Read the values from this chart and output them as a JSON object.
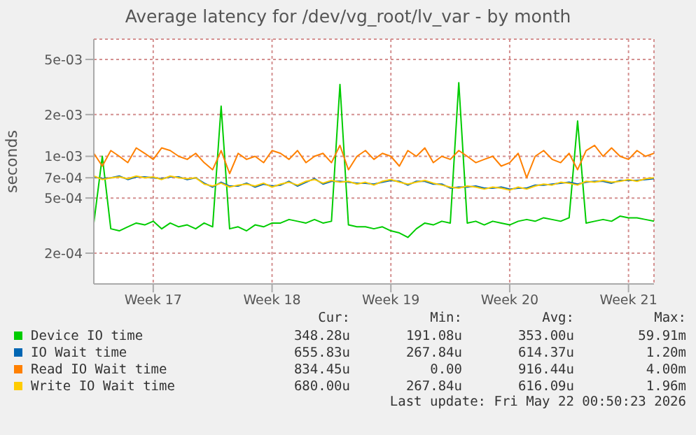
{
  "chart_data": {
    "type": "line",
    "title": "Average latency for /dev/vg_root/lv_var - by month",
    "ylabel": "seconds",
    "log": "y",
    "grid": true,
    "legend": "bottom",
    "categories": [
      null,
      null,
      null,
      null,
      null,
      null,
      null,
      "Week 17",
      null,
      null,
      null,
      null,
      null,
      null,
      null,
      null,
      null,
      null,
      null,
      null,
      null,
      "Week 18",
      null,
      null,
      null,
      null,
      null,
      null,
      null,
      null,
      null,
      null,
      null,
      null,
      null,
      "Week 19",
      null,
      null,
      null,
      null,
      null,
      null,
      null,
      null,
      null,
      null,
      null,
      null,
      null,
      "Week 20",
      null,
      null,
      null,
      null,
      null,
      null,
      null,
      null,
      null,
      null,
      null,
      null,
      null,
      "Week 21",
      null,
      null,
      null
    ],
    "ylim": [
      0.00012,
      0.007
    ],
    "yticks": [
      {
        "value": 0.0002,
        "label": "2e-04"
      },
      {
        "value": 0.0005,
        "label": "5e-04"
      },
      {
        "value": 0.0007,
        "label": "7e-04"
      },
      {
        "value": 0.001,
        "label": "1e-03"
      },
      {
        "value": 0.002,
        "label": "2e-03"
      },
      {
        "value": 0.005,
        "label": "5e-03"
      }
    ],
    "series": [
      {
        "name": "Device IO time",
        "color": "#00cc00",
        "values": [
          0.00033,
          0.001,
          0.0003,
          0.00029,
          0.00031,
          0.00033,
          0.00032,
          0.00034,
          0.0003,
          0.00033,
          0.00031,
          0.00032,
          0.0003,
          0.00033,
          0.00031,
          0.0023,
          0.0003,
          0.00031,
          0.00029,
          0.00032,
          0.00031,
          0.00033,
          0.00033,
          0.00035,
          0.00034,
          0.00033,
          0.00035,
          0.00033,
          0.00034,
          0.0033,
          0.00032,
          0.00031,
          0.00031,
          0.0003,
          0.00031,
          0.00029,
          0.00028,
          0.00026,
          0.0003,
          0.00033,
          0.00032,
          0.00034,
          0.00033,
          0.0034,
          0.00033,
          0.00034,
          0.00032,
          0.00034,
          0.00033,
          0.00032,
          0.00034,
          0.00035,
          0.00034,
          0.00036,
          0.00035,
          0.00034,
          0.00036,
          0.0018,
          0.00033,
          0.00034,
          0.00035,
          0.00034,
          0.00037,
          0.00036,
          0.00036,
          0.00035,
          0.00034
        ]
      },
      {
        "name": "IO Wait time",
        "color": "#0066b3",
        "values": [
          0.00071,
          0.00069,
          0.0007,
          0.00072,
          0.00068,
          0.00071,
          0.00071,
          0.0007,
          0.00069,
          0.00071,
          0.00071,
          0.00068,
          0.0007,
          0.00064,
          0.0006,
          0.00065,
          0.00061,
          0.00061,
          0.00064,
          0.0006,
          0.00063,
          0.00061,
          0.00062,
          0.00066,
          0.00061,
          0.00065,
          0.00069,
          0.00063,
          0.00066,
          0.00066,
          0.00065,
          0.00064,
          0.00064,
          0.00063,
          0.00065,
          0.00067,
          0.00066,
          0.00062,
          0.00066,
          0.00066,
          0.00063,
          0.00063,
          0.00059,
          0.0006,
          0.0006,
          0.00061,
          0.00059,
          0.00059,
          0.0006,
          0.00058,
          0.00059,
          0.00059,
          0.00062,
          0.00062,
          0.00063,
          0.00064,
          0.00065,
          0.00063,
          0.00065,
          0.00066,
          0.00066,
          0.00064,
          0.00067,
          0.00067,
          0.00067,
          0.00068,
          0.00069
        ]
      },
      {
        "name": "Read IO Wait time",
        "color": "#ff8000",
        "values": [
          0.00105,
          0.00085,
          0.0011,
          0.001,
          0.0009,
          0.00115,
          0.00105,
          0.00095,
          0.00115,
          0.0011,
          0.001,
          0.00095,
          0.00105,
          0.0009,
          0.0008,
          0.0011,
          0.00075,
          0.00105,
          0.00095,
          0.001,
          0.0009,
          0.0011,
          0.00105,
          0.00095,
          0.0011,
          0.0009,
          0.001,
          0.00105,
          0.0009,
          0.0012,
          0.0008,
          0.001,
          0.0011,
          0.00095,
          0.00105,
          0.001,
          0.00085,
          0.0011,
          0.001,
          0.00115,
          0.0009,
          0.001,
          0.00095,
          0.0011,
          0.001,
          0.0009,
          0.00095,
          0.001,
          0.00085,
          0.0009,
          0.00105,
          0.0007,
          0.001,
          0.0011,
          0.00095,
          0.0009,
          0.00105,
          0.0008,
          0.0011,
          0.0012,
          0.001,
          0.00115,
          0.001,
          0.00095,
          0.0011,
          0.001,
          0.00105
        ]
      },
      {
        "name": "Write IO Wait time",
        "color": "#ffcc00",
        "values": [
          0.00072,
          0.00068,
          0.0007,
          0.00071,
          0.00069,
          0.00072,
          0.0007,
          0.00071,
          0.00068,
          0.00072,
          0.0007,
          0.00069,
          0.0007,
          0.00063,
          0.00061,
          0.00064,
          0.0006,
          0.00062,
          0.00063,
          0.00061,
          0.00064,
          0.0006,
          0.00063,
          0.00065,
          0.00062,
          0.00066,
          0.00068,
          0.00064,
          0.00067,
          0.00065,
          0.00066,
          0.00063,
          0.00065,
          0.00062,
          0.00066,
          0.00068,
          0.00065,
          0.00063,
          0.00065,
          0.00067,
          0.00064,
          0.00062,
          0.0006,
          0.00059,
          0.00061,
          0.0006,
          0.00058,
          0.0006,
          0.00059,
          0.00057,
          0.0006,
          0.00058,
          0.00061,
          0.00063,
          0.00062,
          0.00065,
          0.00064,
          0.00062,
          0.00066,
          0.00065,
          0.00067,
          0.00065,
          0.00066,
          0.00068,
          0.00066,
          0.00069,
          0.0007
        ]
      }
    ],
    "annotations": [
      "Cur:",
      "Min:",
      "Avg:",
      "Max:",
      "348.28u",
      "191.08u",
      "353.00u",
      "59.91m",
      "655.83u",
      "267.84u",
      "614.37u",
      "1.20m",
      "834.45u",
      "0.00",
      "916.44u",
      "4.00m",
      "680.00u",
      "267.84u",
      "616.09u",
      "1.96m",
      "Last update: Fri May 22 00:50:23 2026"
    ]
  }
}
